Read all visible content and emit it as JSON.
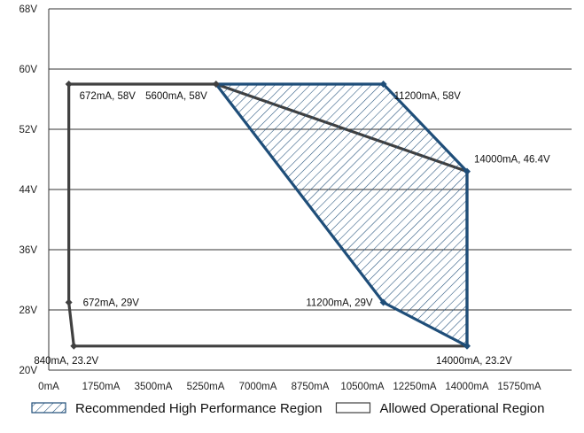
{
  "chart_data": {
    "type": "area",
    "title": "",
    "xlabel": "",
    "ylabel": "",
    "xlim": [
      0,
      17500
    ],
    "ylim": [
      20,
      68
    ],
    "grid": true,
    "legend_position": "bottom",
    "x_ticks": [
      {
        "value": 0,
        "label": "0mA"
      },
      {
        "value": 1750,
        "label": "1750mA"
      },
      {
        "value": 3500,
        "label": "3500mA"
      },
      {
        "value": 5250,
        "label": "5250mA"
      },
      {
        "value": 7000,
        "label": "7000mA"
      },
      {
        "value": 8750,
        "label": "8750mA"
      },
      {
        "value": 10500,
        "label": "10500mA"
      },
      {
        "value": 12250,
        "label": "12250mA"
      },
      {
        "value": 14000,
        "label": "14000mA"
      },
      {
        "value": 15750,
        "label": "15750mA"
      }
    ],
    "y_ticks": [
      {
        "value": 20,
        "label": "20V"
      },
      {
        "value": 28,
        "label": "28V"
      },
      {
        "value": 36,
        "label": "36V"
      },
      {
        "value": 44,
        "label": "44V"
      },
      {
        "value": 52,
        "label": "52V"
      },
      {
        "value": 60,
        "label": "60V"
      },
      {
        "value": 68,
        "label": "68V"
      }
    ],
    "series": [
      {
        "name": "Allowed Operational Region",
        "color": "#404040",
        "fill": "none",
        "points": [
          {
            "x": 672,
            "y": 58,
            "label": "672mA, 58V",
            "label_side": "right-below"
          },
          {
            "x": 5600,
            "y": 58,
            "label": "5600mA, 58V",
            "label_side": "left-below"
          },
          {
            "x": 672,
            "y": 29,
            "label": "672mA, 29V",
            "label_side": "right"
          },
          {
            "x": 840,
            "y": 23.2,
            "label": "840mA, 23.2V",
            "label_side": "below-left"
          }
        ],
        "outline": [
          [
            672,
            58
          ],
          [
            5600,
            58
          ],
          [
            14000,
            46.4
          ],
          [
            14000,
            23.2
          ],
          [
            840,
            23.2
          ],
          [
            672,
            29
          ],
          [
            672,
            58
          ]
        ]
      },
      {
        "name": "Recommended High Performance Region",
        "color": "#1f4e79",
        "fill": "hatch",
        "points": [
          {
            "x": 11200,
            "y": 58,
            "label": "11200mA, 58V",
            "label_side": "right-below"
          },
          {
            "x": 14000,
            "y": 46.4,
            "label": "14000mA, 46.4V",
            "label_side": "right-above"
          },
          {
            "x": 11200,
            "y": 29,
            "label": "11200mA, 29V",
            "label_side": "left"
          },
          {
            "x": 14000,
            "y": 23.2,
            "label": "14000mA, 23.2V",
            "label_side": "below"
          }
        ],
        "outline": [
          [
            5600,
            58
          ],
          [
            11200,
            58
          ],
          [
            14000,
            46.4
          ],
          [
            14000,
            23.2
          ],
          [
            11200,
            29
          ],
          [
            5600,
            58
          ]
        ]
      }
    ],
    "legend": [
      {
        "label": "Recommended High Performance Region",
        "style": "hatch",
        "color": "#1f4e79"
      },
      {
        "label": "Allowed Operational Region",
        "style": "outline",
        "color": "#404040"
      }
    ]
  }
}
